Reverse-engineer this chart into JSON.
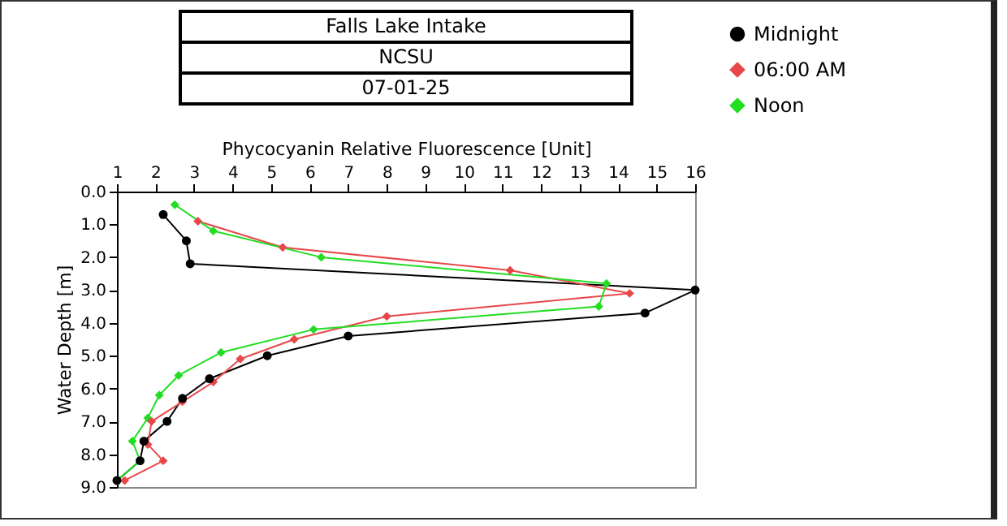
{
  "chart_data": {
    "type": "line",
    "title": "Falls Lake Intake",
    "subtitle": "NCSU",
    "annotations": [
      "07-01-25"
    ],
    "xlabel": "Phycocyanin Relative Fluorescence [Unit]",
    "ylabel": "Water Depth [m]",
    "xlim": [
      1,
      16
    ],
    "xticks": [
      1,
      2,
      3,
      4,
      5,
      6,
      7,
      8,
      9,
      10,
      11,
      12,
      13,
      14,
      15,
      16
    ],
    "ylim": [
      9,
      0
    ],
    "yticks": [
      {
        "value": 0,
        "label": "0.0"
      },
      {
        "value": 1,
        "label": "1.0"
      },
      {
        "value": 2,
        "label": "2.0"
      },
      {
        "value": 3,
        "label": "3.0"
      },
      {
        "value": 4,
        "label": "4.0"
      },
      {
        "value": 5,
        "label": "5.0"
      },
      {
        "value": 6,
        "label": "6.0"
      },
      {
        "value": 7,
        "label": "7.0"
      },
      {
        "value": 8,
        "label": "8.0"
      },
      {
        "value": 9,
        "label": "9.0"
      }
    ],
    "grid": false,
    "legend": "top right",
    "line_style": "solid",
    "series": [
      {
        "name": "Midnight",
        "color": "#000000",
        "marker": "circle",
        "x": [
          2.2,
          2.8,
          2.9,
          16,
          14.7,
          7.0,
          4.9,
          3.4,
          2.7,
          2.3,
          1.7,
          1.6,
          1.0
        ],
        "values": [
          0.7,
          1.5,
          2.2,
          3.0,
          3.7,
          4.4,
          5.0,
          5.7,
          6.3,
          7.0,
          7.6,
          8.2,
          8.8
        ]
      },
      {
        "name": "06:00 AM",
        "color": "#e8474a",
        "marker": "diamond",
        "x": [
          3.1,
          5.3,
          11.2,
          14.3,
          8.0,
          5.6,
          4.2,
          3.5,
          2.7,
          1.9,
          1.8,
          2.2,
          1.2
        ],
        "values": [
          0.9,
          1.7,
          2.4,
          3.1,
          3.8,
          4.5,
          5.1,
          5.8,
          6.4,
          7.0,
          7.7,
          8.2,
          8.8
        ]
      },
      {
        "name": "Noon",
        "color": "#22dd22",
        "marker": "diamond",
        "x": [
          2.5,
          3.5,
          6.3,
          13.7,
          13.5,
          6.1,
          3.7,
          2.6,
          2.1,
          1.8,
          1.4,
          1.6,
          1.0
        ],
        "values": [
          0.4,
          1.2,
          2.0,
          2.8,
          3.5,
          4.2,
          4.9,
          5.6,
          6.2,
          6.9,
          7.6,
          8.2,
          8.8
        ]
      }
    ]
  }
}
